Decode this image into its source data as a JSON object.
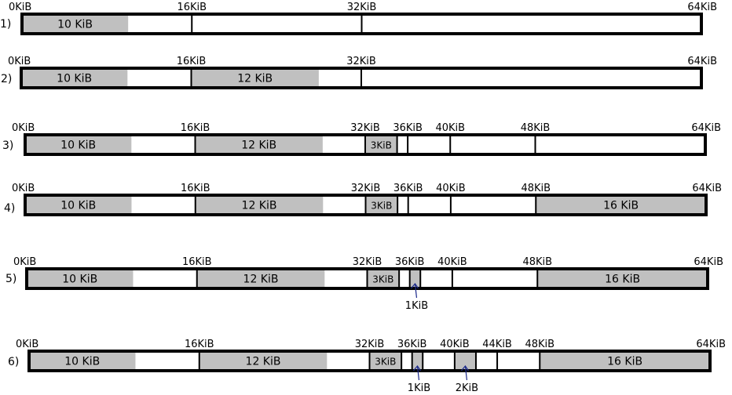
{
  "colors": {
    "background": "#ffffff",
    "bar_outline": "#000000",
    "allocated_fill": "#c0c0c0",
    "free_fill": "#ffffff",
    "annotation_ink": "#1c2a8c"
  },
  "rows": [
    {
      "label": "1)",
      "ticks": [
        {
          "kib": 0,
          "text": "0KiB"
        },
        {
          "kib": 16,
          "text": "16KiB"
        },
        {
          "kib": 32,
          "text": "32KiB"
        },
        {
          "kib": 64,
          "text": "64KiB"
        }
      ],
      "dividers": [
        16,
        32
      ],
      "blocks": [
        {
          "start": 0,
          "size": 10,
          "text": "10 KiB"
        }
      ],
      "annotations": []
    },
    {
      "label": "2)",
      "ticks": [
        {
          "kib": 0,
          "text": "0KiB"
        },
        {
          "kib": 16,
          "text": "16KiB"
        },
        {
          "kib": 32,
          "text": "32KiB"
        },
        {
          "kib": 64,
          "text": "64KiB"
        }
      ],
      "dividers": [
        16,
        32
      ],
      "blocks": [
        {
          "start": 0,
          "size": 10,
          "text": "10 KiB"
        },
        {
          "start": 16,
          "size": 12,
          "text": "12 KiB"
        }
      ],
      "annotations": []
    },
    {
      "label": "3)",
      "ticks": [
        {
          "kib": 0,
          "text": "0KiB"
        },
        {
          "kib": 16,
          "text": "16KiB"
        },
        {
          "kib": 32,
          "text": "32KiB"
        },
        {
          "kib": 36,
          "text": "36KiB"
        },
        {
          "kib": 40,
          "text": "40KiB"
        },
        {
          "kib": 48,
          "text": "48KiB"
        },
        {
          "kib": 64,
          "text": "64KiB"
        }
      ],
      "dividers": [
        16,
        32,
        35,
        36,
        40,
        48
      ],
      "blocks": [
        {
          "start": 0,
          "size": 10,
          "text": "10 KiB"
        },
        {
          "start": 16,
          "size": 12,
          "text": "12 KiB"
        },
        {
          "start": 32,
          "size": 3,
          "text": "3KiB"
        }
      ],
      "annotations": []
    },
    {
      "label": "4)",
      "ticks": [
        {
          "kib": 0,
          "text": "0KiB"
        },
        {
          "kib": 16,
          "text": "16KiB"
        },
        {
          "kib": 32,
          "text": "32KiB"
        },
        {
          "kib": 36,
          "text": "36KiB"
        },
        {
          "kib": 40,
          "text": "40KiB"
        },
        {
          "kib": 48,
          "text": "48KiB"
        },
        {
          "kib": 64,
          "text": "64KiB"
        }
      ],
      "dividers": [
        16,
        32,
        35,
        36,
        40,
        48
      ],
      "blocks": [
        {
          "start": 0,
          "size": 10,
          "text": "10 KiB"
        },
        {
          "start": 16,
          "size": 12,
          "text": "12 KiB"
        },
        {
          "start": 32,
          "size": 3,
          "text": "3KiB"
        },
        {
          "start": 48,
          "size": 16,
          "text": "16 KiB"
        }
      ],
      "annotations": []
    },
    {
      "label": "5)",
      "ticks": [
        {
          "kib": 0,
          "text": "0KiB"
        },
        {
          "kib": 16,
          "text": "16KiB"
        },
        {
          "kib": 32,
          "text": "32KiB"
        },
        {
          "kib": 36,
          "text": "36KiB"
        },
        {
          "kib": 40,
          "text": "40KiB"
        },
        {
          "kib": 48,
          "text": "48KiB"
        },
        {
          "kib": 64,
          "text": "64KiB"
        }
      ],
      "dividers": [
        16,
        32,
        35,
        36,
        37,
        40,
        48
      ],
      "blocks": [
        {
          "start": 0,
          "size": 10,
          "text": "10 KiB"
        },
        {
          "start": 16,
          "size": 12,
          "text": "12 KiB"
        },
        {
          "start": 32,
          "size": 3,
          "text": "3KiB"
        },
        {
          "start": 36,
          "size": 1,
          "text": ""
        },
        {
          "start": 48,
          "size": 16,
          "text": "16 KiB"
        }
      ],
      "annotations": [
        {
          "at_kib": 36.5,
          "text": "1KiB"
        }
      ]
    },
    {
      "label": "6)",
      "ticks": [
        {
          "kib": 0,
          "text": "0KiB"
        },
        {
          "kib": 16,
          "text": "16KiB"
        },
        {
          "kib": 32,
          "text": "32KiB"
        },
        {
          "kib": 36,
          "text": "36KiB"
        },
        {
          "kib": 40,
          "text": "40KiB"
        },
        {
          "kib": 44,
          "text": "44KiB"
        },
        {
          "kib": 48,
          "text": "48KiB"
        },
        {
          "kib": 64,
          "text": "64KiB"
        }
      ],
      "dividers": [
        16,
        32,
        35,
        36,
        37,
        40,
        42,
        44,
        48
      ],
      "blocks": [
        {
          "start": 0,
          "size": 10,
          "text": "10 KiB"
        },
        {
          "start": 16,
          "size": 12,
          "text": "12 KiB"
        },
        {
          "start": 32,
          "size": 3,
          "text": "3KiB"
        },
        {
          "start": 36,
          "size": 1,
          "text": ""
        },
        {
          "start": 40,
          "size": 2,
          "text": ""
        },
        {
          "start": 48,
          "size": 16,
          "text": "16 KiB"
        }
      ],
      "annotations": [
        {
          "at_kib": 36.5,
          "text": "1KiB"
        },
        {
          "at_kib": 41,
          "text": "2KiB"
        }
      ]
    }
  ]
}
